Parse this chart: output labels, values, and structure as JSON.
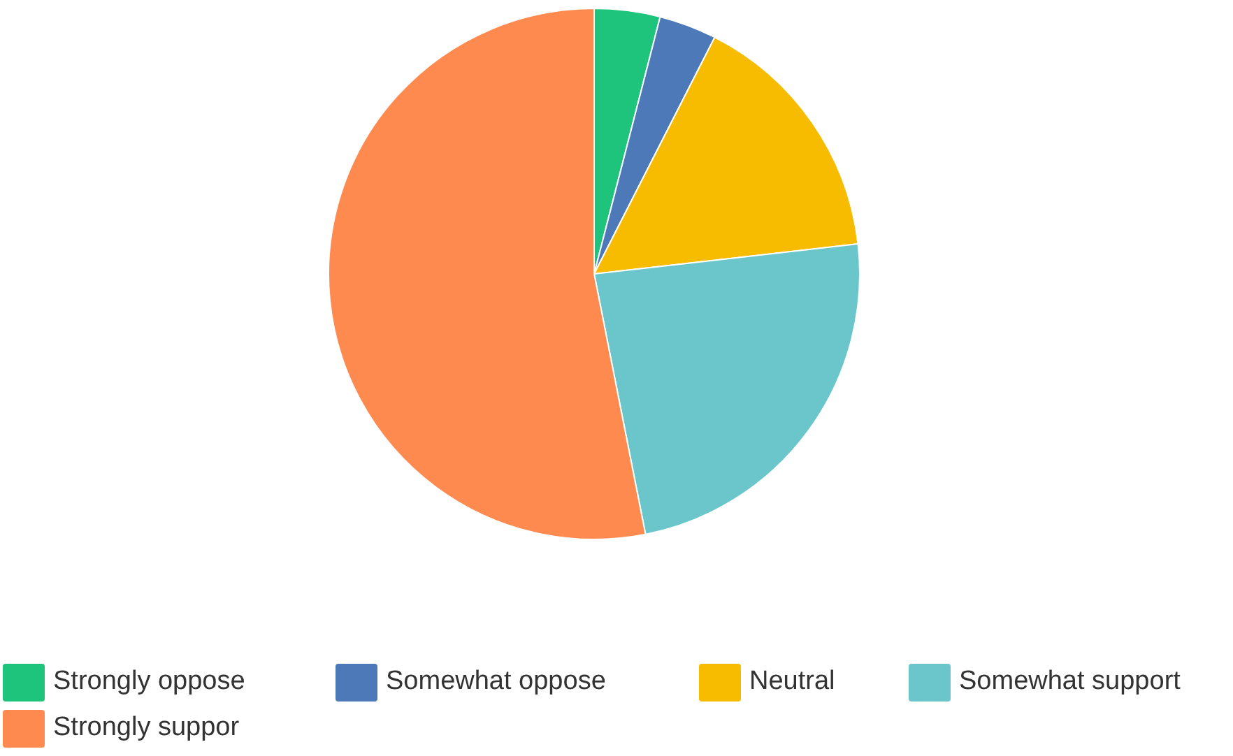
{
  "chart_data": {
    "type": "pie",
    "categories": [
      "Strongly oppose",
      "Somewhat oppose",
      "Neutral",
      "Somewhat support",
      "Strongly suppor"
    ],
    "values": [
      4,
      3.5,
      15.7,
      23.7,
      53.1
    ],
    "colors": [
      "#1ec47c",
      "#4d79b9",
      "#f7bc00",
      "#6bc6cc",
      "#ff8a4f"
    ],
    "legend": "bottom"
  }
}
